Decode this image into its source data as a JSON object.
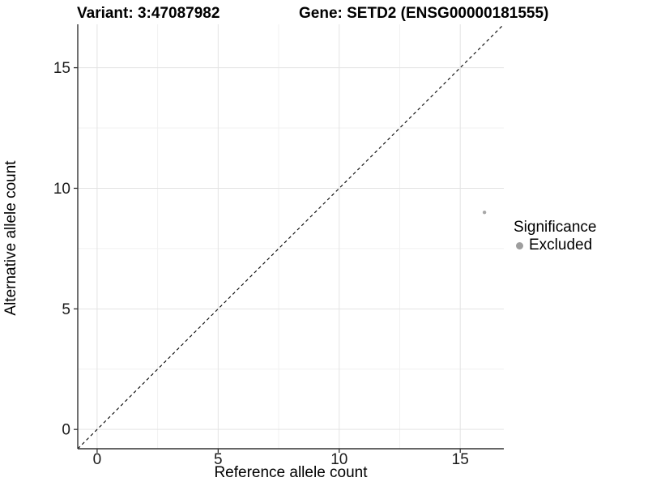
{
  "header": {
    "variant_title": "Variant: 3:47087982",
    "gene_title": "Gene: SETD2 (ENSG00000181555)"
  },
  "legend": {
    "title": "Significance",
    "items": [
      {
        "label": "Excluded",
        "color": "#9e9e9e"
      }
    ],
    "position": "right"
  },
  "chart_data": {
    "type": "scatter",
    "title": "Variant: 3:47087982   Gene: SETD2 (ENSG00000181555)",
    "xlabel": "Reference allele count",
    "ylabel": "Alternative allele count",
    "xlim": [
      0,
      16
    ],
    "ylim": [
      0,
      16
    ],
    "expansion_fraction": 0.05,
    "x_breaks": [
      0,
      5,
      10,
      15
    ],
    "y_breaks": [
      0,
      5,
      10,
      15
    ],
    "x_minor_breaks": [
      2.5,
      7.5,
      12.5
    ],
    "y_minor_breaks": [
      2.5,
      7.5,
      12.5
    ],
    "grid": true,
    "legend_position": "right",
    "series": [
      {
        "name": "Excluded",
        "color": "#a8a8a8",
        "points": [
          {
            "x": 16,
            "y": 9
          }
        ]
      }
    ],
    "reference_line": {
      "kind": "identity",
      "slope": 1,
      "intercept": 0,
      "style": "dashed",
      "color": "#000000"
    },
    "colors": {
      "panel_background": "#ffffff",
      "grid_major": "#e3e3e3",
      "grid_minor": "#f1f1f1",
      "axis_line": "#333333",
      "tick_label": "#1a1a1a",
      "point": "#a8a8a8",
      "legend_dot": "#9e9e9e"
    }
  }
}
